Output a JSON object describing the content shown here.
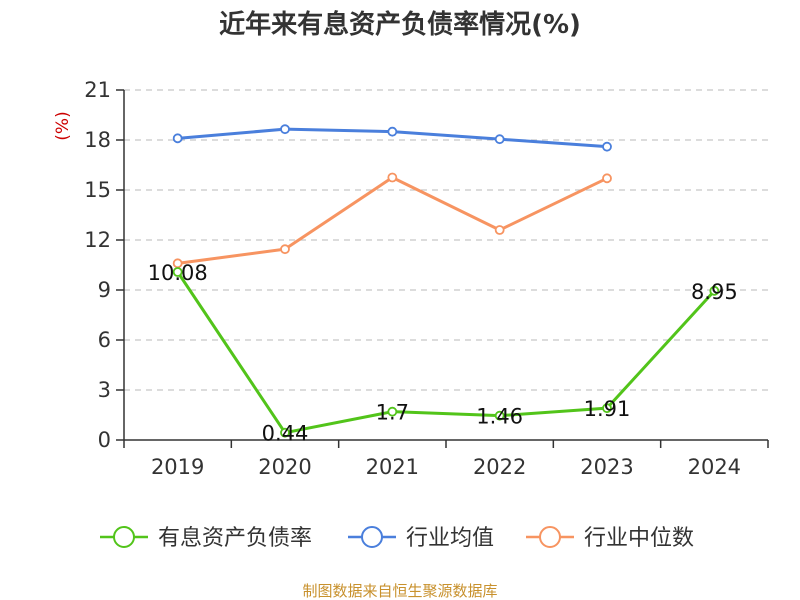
{
  "title": "近年来有息资产负债率情况(%)",
  "source": "制图数据来自恒生聚源数据库",
  "colors": {
    "axis": "#333333",
    "grid": "#c8c8c8",
    "unit": "#cc0000",
    "source": "#c8912d"
  },
  "chart_data": {
    "type": "line",
    "categories": [
      "2019",
      "2020",
      "2021",
      "2022",
      "2023",
      "2024"
    ],
    "ylabel": "(%)",
    "ylim": [
      0,
      21
    ],
    "yticks": [
      0,
      3,
      6,
      9,
      12,
      15,
      18,
      21
    ],
    "grid": "horizontal dashed",
    "legend": "bottom",
    "series": [
      {
        "name": "有息资产负债率",
        "color": "#52c41a",
        "values": [
          10.08,
          0.44,
          1.7,
          1.46,
          1.91,
          8.95
        ],
        "labels": [
          "10.08",
          "0.44",
          "1.7",
          "1.46",
          "1.91",
          "8.95"
        ]
      },
      {
        "name": "行业均值",
        "color": "#4a7fdc",
        "values": [
          18.1,
          18.65,
          18.5,
          18.05,
          17.6,
          null
        ]
      },
      {
        "name": "行业中位数",
        "color": "#f79461",
        "values": [
          10.6,
          11.45,
          15.75,
          12.6,
          15.7,
          null
        ]
      }
    ]
  }
}
